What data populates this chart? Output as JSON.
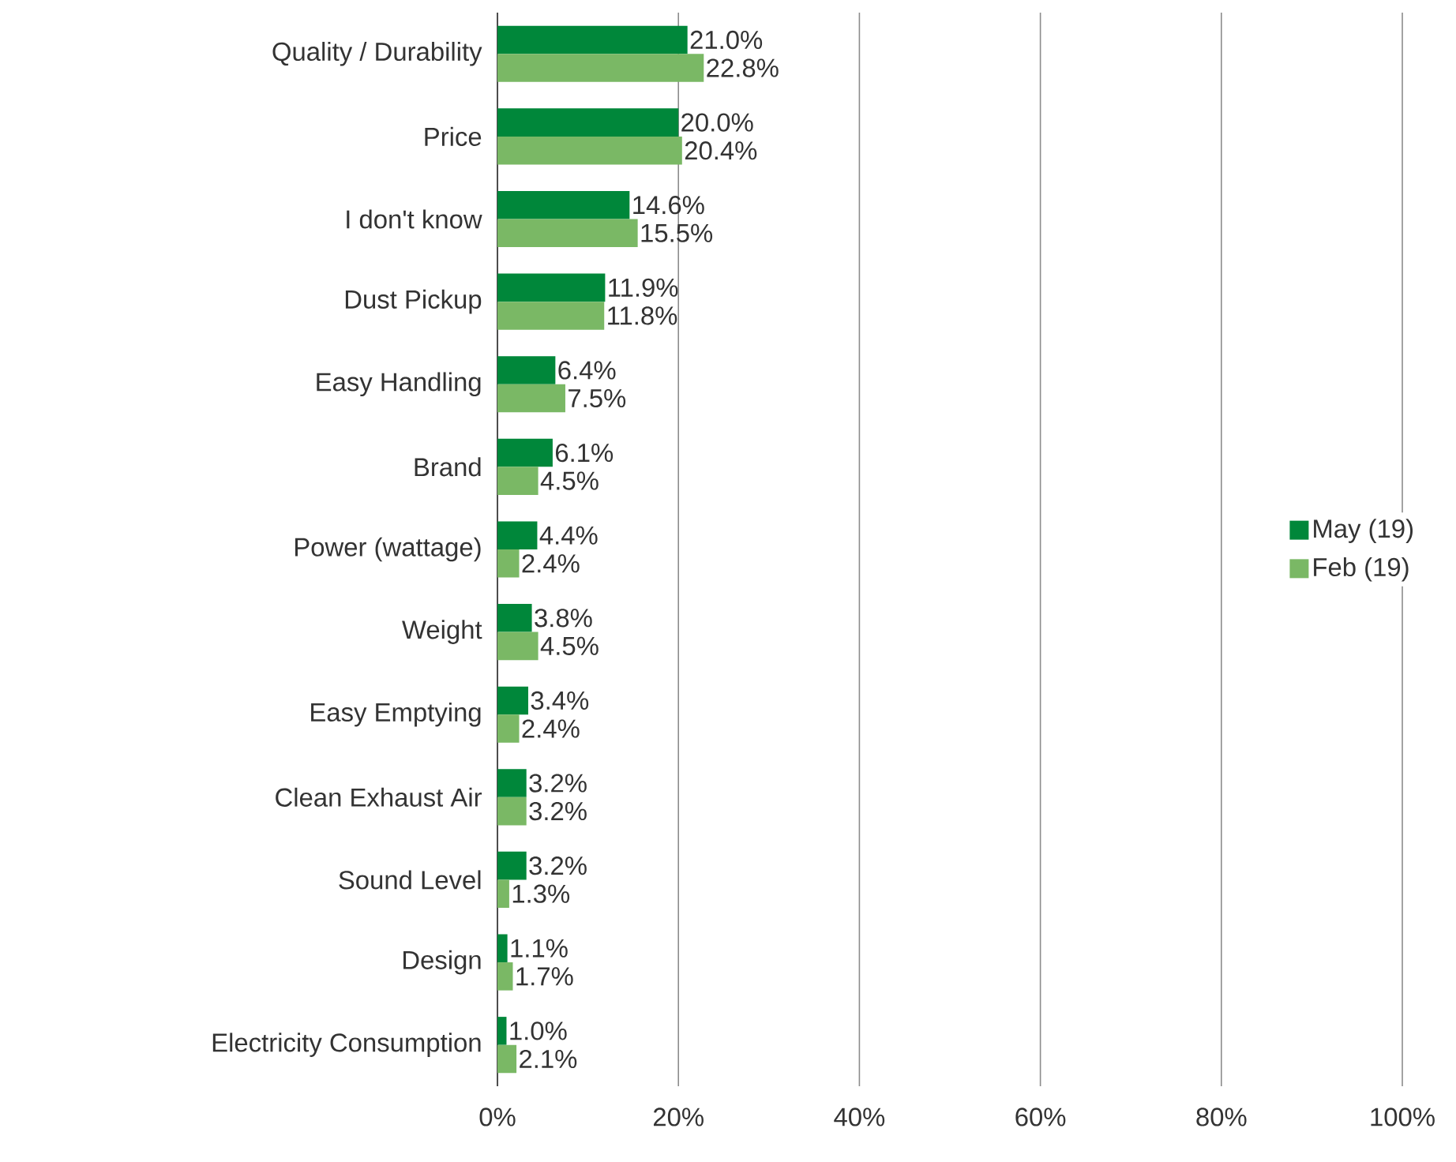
{
  "chart_data": {
    "type": "bar",
    "orientation": "horizontal",
    "categories": [
      "Quality / Durability",
      "Price",
      "I don't know",
      "Dust Pickup",
      "Easy Handling",
      "Brand",
      "Power (wattage)",
      "Weight",
      "Easy Emptying",
      "Clean Exhaust Air",
      "Sound Level",
      "Design",
      "Electricity Consumption"
    ],
    "series": [
      {
        "name": "May (19)",
        "color": "#00873a",
        "values": [
          21.0,
          20.0,
          14.6,
          11.9,
          6.4,
          6.1,
          4.4,
          3.8,
          3.4,
          3.2,
          3.2,
          1.1,
          1.0
        ],
        "value_labels": [
          "21.0%",
          "20.0%",
          "14.6%",
          "11.9%",
          "6.4%",
          "6.1%",
          "4.4%",
          "3.8%",
          "3.4%",
          "3.2%",
          "3.2%",
          "1.1%",
          "1.0%"
        ]
      },
      {
        "name": "Feb (19)",
        "color": "#7ab865",
        "values": [
          22.8,
          20.4,
          15.5,
          11.8,
          7.5,
          4.5,
          2.4,
          4.5,
          2.4,
          3.2,
          1.3,
          1.7,
          2.1
        ],
        "value_labels": [
          "22.8%",
          "20.4%",
          "15.5%",
          "11.8%",
          "7.5%",
          "4.5%",
          "2.4%",
          "4.5%",
          "2.4%",
          "3.2%",
          "1.3%",
          "1.7%",
          "2.1%"
        ]
      }
    ],
    "xlim": [
      0,
      100
    ],
    "xticks": [
      {
        "value": 0,
        "label": "0%"
      },
      {
        "value": 20,
        "label": "20%"
      },
      {
        "value": 40,
        "label": "40%"
      },
      {
        "value": 60,
        "label": "60%"
      },
      {
        "value": 80,
        "label": "80%"
      },
      {
        "value": 100,
        "label": "100%"
      }
    ],
    "grid": "x",
    "legend": "right"
  }
}
